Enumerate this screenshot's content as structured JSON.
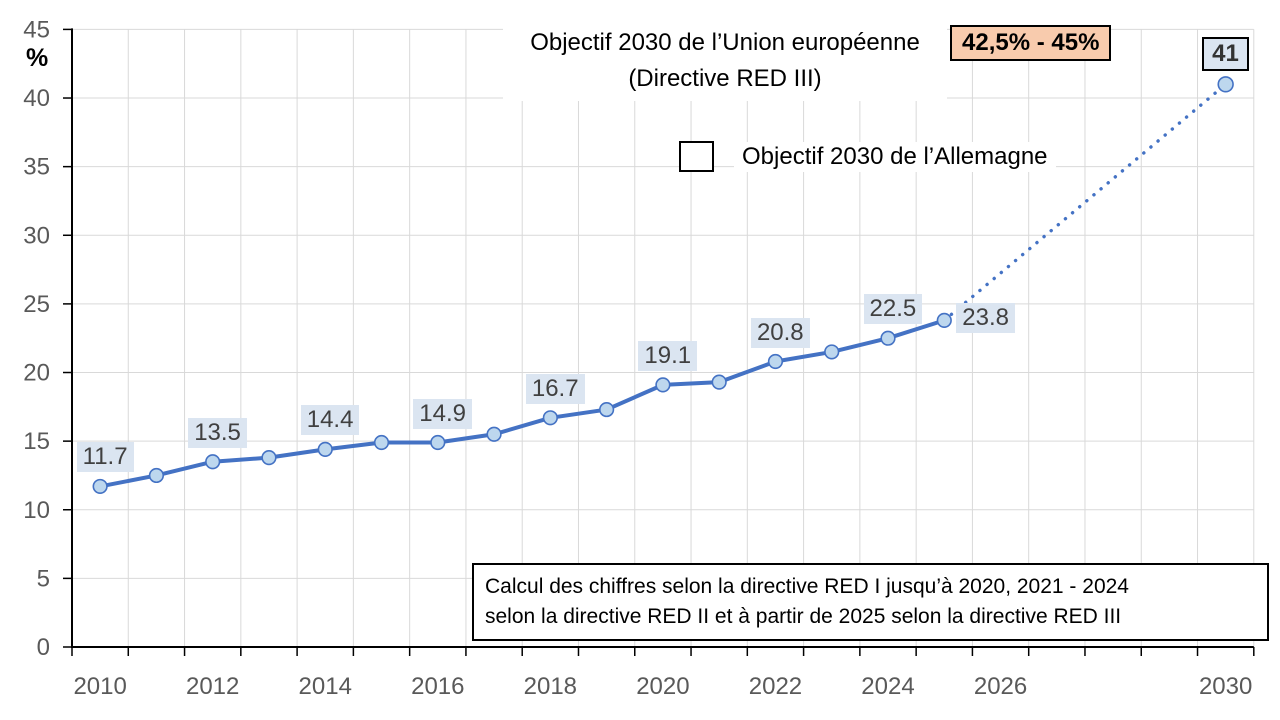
{
  "chart_data": {
    "type": "line",
    "title": "Objectif 2030 de l’Union européenne",
    "subtitle": "(Directive RED III)",
    "eu_target_label": "42,5% - 45%",
    "legend_label": "Objectif 2030 de l’Allemagne",
    "ylabel": "%",
    "ylim": [
      0,
      45
    ],
    "yticks": [
      0,
      5,
      10,
      15,
      20,
      25,
      30,
      35,
      40,
      45
    ],
    "xticks": [
      "2010",
      "2012",
      "2014",
      "2016",
      "2018",
      "2020",
      "2022",
      "2024",
      "2026",
      "2030"
    ],
    "x_range": [
      2010,
      2030
    ],
    "grid": true,
    "historical": {
      "years": [
        2010,
        2011,
        2012,
        2013,
        2014,
        2015,
        2016,
        2017,
        2018,
        2019,
        2020,
        2021,
        2022,
        2023,
        2024,
        2025
      ],
      "values": [
        11.7,
        12.5,
        13.5,
        13.8,
        14.4,
        14.9,
        14.9,
        15.5,
        16.7,
        17.3,
        19.1,
        19.3,
        20.8,
        21.5,
        22.5,
        23.8
      ]
    },
    "projection": {
      "style": "dotted",
      "years": [
        2025,
        2030
      ],
      "values": [
        23.8,
        41
      ]
    },
    "point_labels": [
      {
        "year": 2010,
        "text": "11.7",
        "placement": "above"
      },
      {
        "year": 2012,
        "text": "13.5",
        "placement": "above"
      },
      {
        "year": 2014,
        "text": "14.4",
        "placement": "above"
      },
      {
        "year": 2016,
        "text": "14.9",
        "placement": "above"
      },
      {
        "year": 2018,
        "text": "16.7",
        "placement": "above"
      },
      {
        "year": 2020,
        "text": "19.1",
        "placement": "above"
      },
      {
        "year": 2022,
        "text": "20.8",
        "placement": "above"
      },
      {
        "year": 2024,
        "text": "22.5",
        "placement": "above"
      },
      {
        "year": 2025,
        "text": "23.8",
        "placement": "right"
      }
    ],
    "target_point": {
      "year": 2030,
      "value": 41,
      "label": "41"
    },
    "note_lines": [
      "Calcul des chiffres selon la directive RED I jusqu’à 2020, 2021 - 2024",
      "selon la directive RED II et à partir de 2025 selon la directive RED III"
    ],
    "colors": {
      "line": "#4472C4",
      "marker_fill": "#BDD7EE",
      "label_bg": "#DBE5F1",
      "label_text": "#404040",
      "eu_box_bg": "#F8CBAD",
      "axis_text": "#595959",
      "grid": "#D9D9D9",
      "axis": "#000000"
    }
  }
}
